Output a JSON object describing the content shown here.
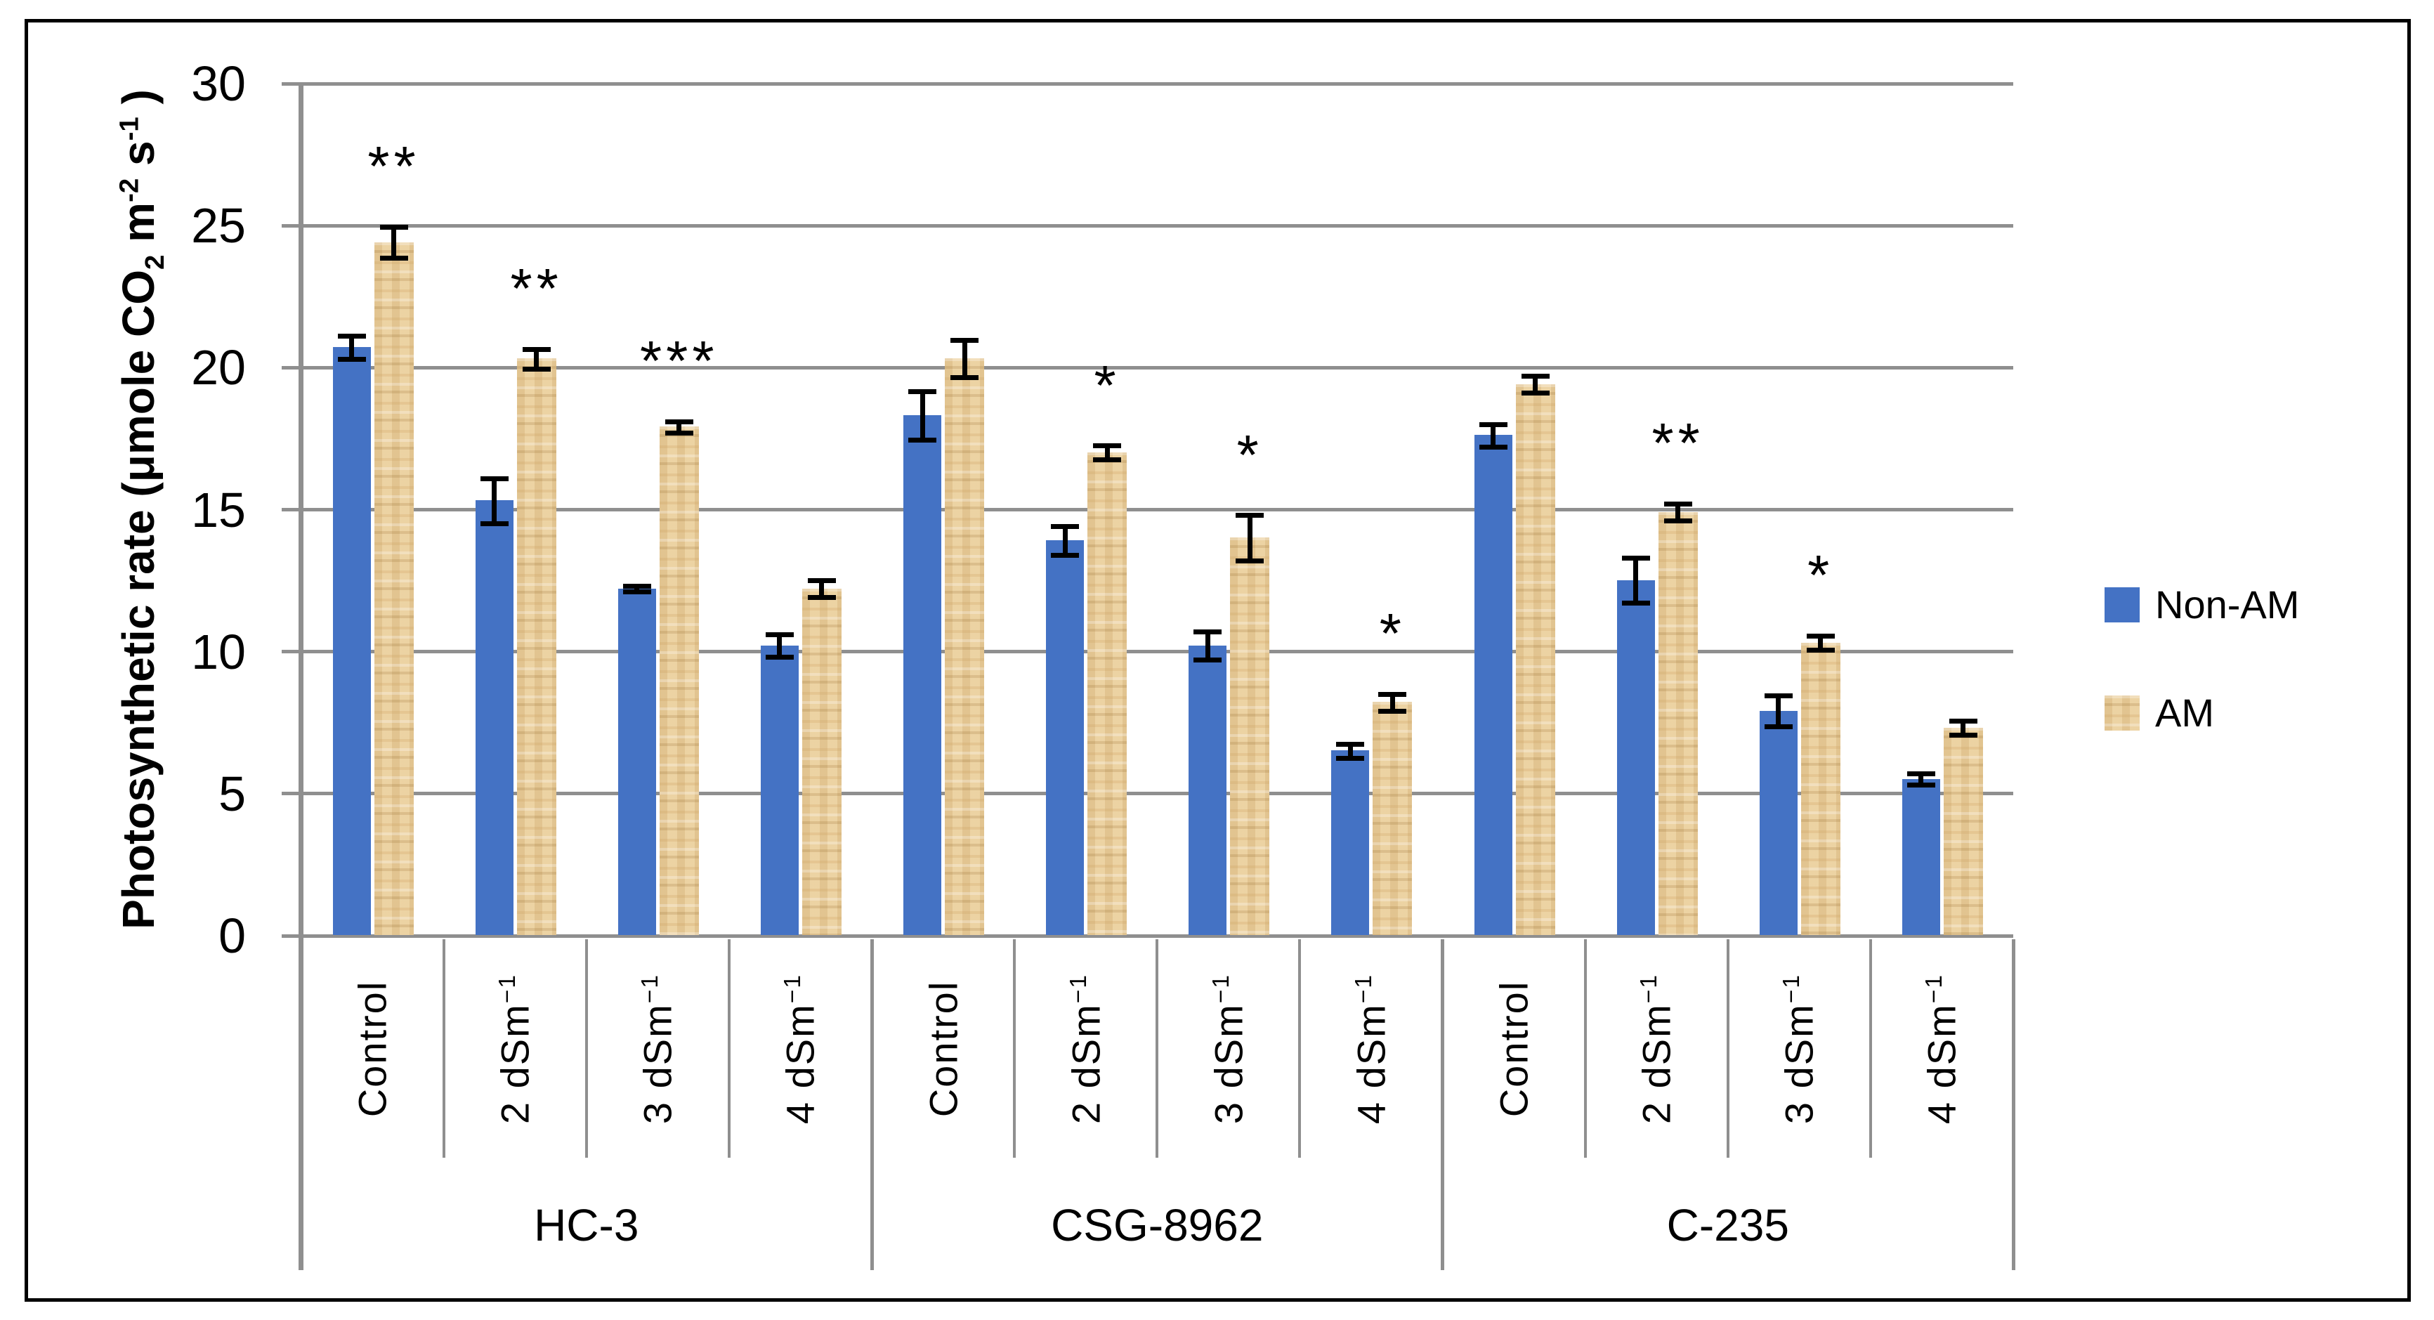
{
  "chart_data": {
    "type": "bar",
    "title": "",
    "ylabel_segments": [
      {
        "text": "Photosynthetic rate (μmole CO",
        "style": "normal"
      },
      {
        "text": "2",
        "style": "sub"
      },
      {
        "text": " m",
        "style": "normal"
      },
      {
        "text": "-2",
        "style": "sup"
      },
      {
        "text": " s",
        "style": "normal"
      },
      {
        "text": "-1",
        "style": "sup"
      },
      {
        "text": " )",
        "style": "normal"
      }
    ],
    "xlabel": "",
    "y_ticks": [
      0,
      5,
      10,
      15,
      20,
      25,
      30
    ],
    "ylim": [
      0,
      30
    ],
    "grid": true,
    "legend_position": "right",
    "series_names": [
      "Non-AM",
      "AM"
    ],
    "groups": [
      {
        "label": "HC-3",
        "treatments": [
          {
            "label": "Control",
            "sup": "",
            "non_am": {
              "value": 20.7,
              "err": 0.4
            },
            "am": {
              "value": 24.4,
              "err": 0.55
            },
            "sig": "**"
          },
          {
            "label": "2 dSm",
            "sup": "−1",
            "non_am": {
              "value": 15.3,
              "err": 0.8
            },
            "am": {
              "value": 20.3,
              "err": 0.35
            },
            "sig": "**"
          },
          {
            "label": "3 dSm",
            "sup": "−1",
            "non_am": {
              "value": 12.2,
              "err": 0.1
            },
            "am": {
              "value": 17.9,
              "err": 0.2
            },
            "sig": "***"
          },
          {
            "label": "4 dSm",
            "sup": "−1",
            "non_am": {
              "value": 10.2,
              "err": 0.4
            },
            "am": {
              "value": 12.2,
              "err": 0.3
            },
            "sig": ""
          }
        ]
      },
      {
        "label": "CSG-8962",
        "treatments": [
          {
            "label": "Control",
            "sup": "",
            "non_am": {
              "value": 18.3,
              "err": 0.85
            },
            "am": {
              "value": 20.3,
              "err": 0.65
            },
            "sig": ""
          },
          {
            "label": "2 dSm",
            "sup": "−1",
            "non_am": {
              "value": 13.9,
              "err": 0.5
            },
            "am": {
              "value": 17.0,
              "err": 0.25
            },
            "sig": "*"
          },
          {
            "label": "3 dSm",
            "sup": "−1",
            "non_am": {
              "value": 10.2,
              "err": 0.5
            },
            "am": {
              "value": 14.0,
              "err": 0.8
            },
            "sig": "*"
          },
          {
            "label": "4 dSm",
            "sup": "−1",
            "non_am": {
              "value": 6.5,
              "err": 0.25
            },
            "am": {
              "value": 8.2,
              "err": 0.3
            },
            "sig": "*"
          }
        ]
      },
      {
        "label": "C-235",
        "treatments": [
          {
            "label": "Control",
            "sup": "",
            "non_am": {
              "value": 17.6,
              "err": 0.4
            },
            "am": {
              "value": 19.4,
              "err": 0.3
            },
            "sig": ""
          },
          {
            "label": "2 dSm",
            "sup": "−1",
            "non_am": {
              "value": 12.5,
              "err": 0.8
            },
            "am": {
              "value": 14.9,
              "err": 0.3
            },
            "sig": "**"
          },
          {
            "label": "3 dSm",
            "sup": "−1",
            "non_am": {
              "value": 7.9,
              "err": 0.55
            },
            "am": {
              "value": 10.3,
              "err": 0.25
            },
            "sig": "*"
          },
          {
            "label": "4 dSm",
            "sup": "−1",
            "non_am": {
              "value": 5.5,
              "err": 0.2
            },
            "am": {
              "value": 7.3,
              "err": 0.25
            },
            "sig": ""
          }
        ]
      }
    ],
    "legend": [
      {
        "label": "Non-AM",
        "textured": false
      },
      {
        "label": "AM",
        "textured": true
      }
    ],
    "colors": {
      "non_am": "#4472C4",
      "am_base": "#EACE9B",
      "gridline": "#8F8F8F",
      "error_bar": "#000000",
      "frame": "#000000"
    }
  }
}
